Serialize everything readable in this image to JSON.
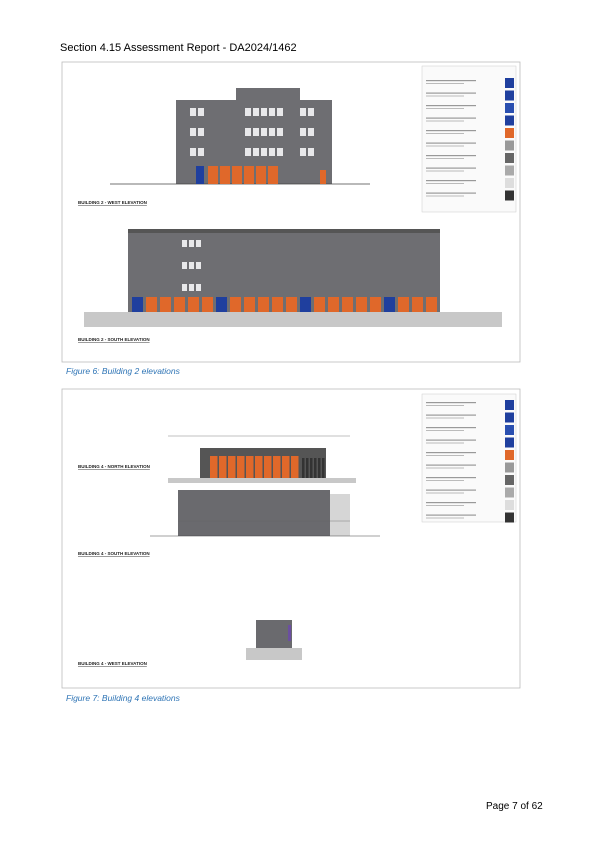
{
  "header": {
    "title": "Section 4.15 Assessment Report - DA2024/1462"
  },
  "figures": [
    {
      "drawings": [
        {
          "label": "BUILDING 2 - WEST ELEVATION"
        },
        {
          "label": "BUILDING 2 - SOUTH ELEVATION"
        }
      ],
      "caption": "Figure 6: Building 2 elevations"
    },
    {
      "drawings": [
        {
          "label": "BUILDING 4 - NORTH ELEVATION"
        },
        {
          "label": "BUILDING 4 - SOUTH ELEVATION"
        },
        {
          "label": "BUILDING 4 - WEST ELEVATION"
        }
      ],
      "caption": "Figure 7: Building 4 elevations"
    }
  ],
  "footer": {
    "page": "Page 7 of 62"
  }
}
